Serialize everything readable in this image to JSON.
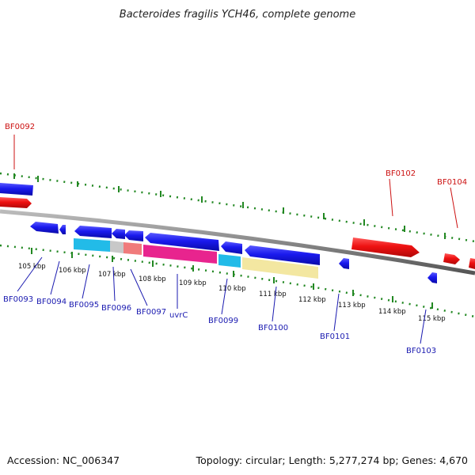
{
  "title": "Bacteroides fragilis YCH46, complete genome",
  "footer": {
    "accession": "Accession: NC_006347",
    "summary": "Topology: circular; Length: 5,277,274 bp; Genes: 4,670"
  },
  "colors": {
    "forward_gene": "#ee1111",
    "reverse_gene": "#1a1aee",
    "backbone": "#888888",
    "tick": "#228822",
    "label_forward": "#cc1111",
    "label_reverse": "#1a1ab0"
  },
  "kbp_labels": [
    "105 kbp",
    "106 kbp",
    "107 kbp",
    "108 kbp",
    "109 kbp",
    "110 kbp",
    "111 kbp",
    "112 kbp",
    "113 kbp",
    "114 kbp",
    "115 kbp"
  ],
  "forward_labels": [
    "BF0092",
    "BF0102",
    "BF0104"
  ],
  "reverse_labels": [
    "BF0093",
    "BF0094",
    "BF0095",
    "BF0096",
    "BF0097",
    "uvrC",
    "BF0099",
    "BF0100",
    "BF0101",
    "BF0103"
  ]
}
